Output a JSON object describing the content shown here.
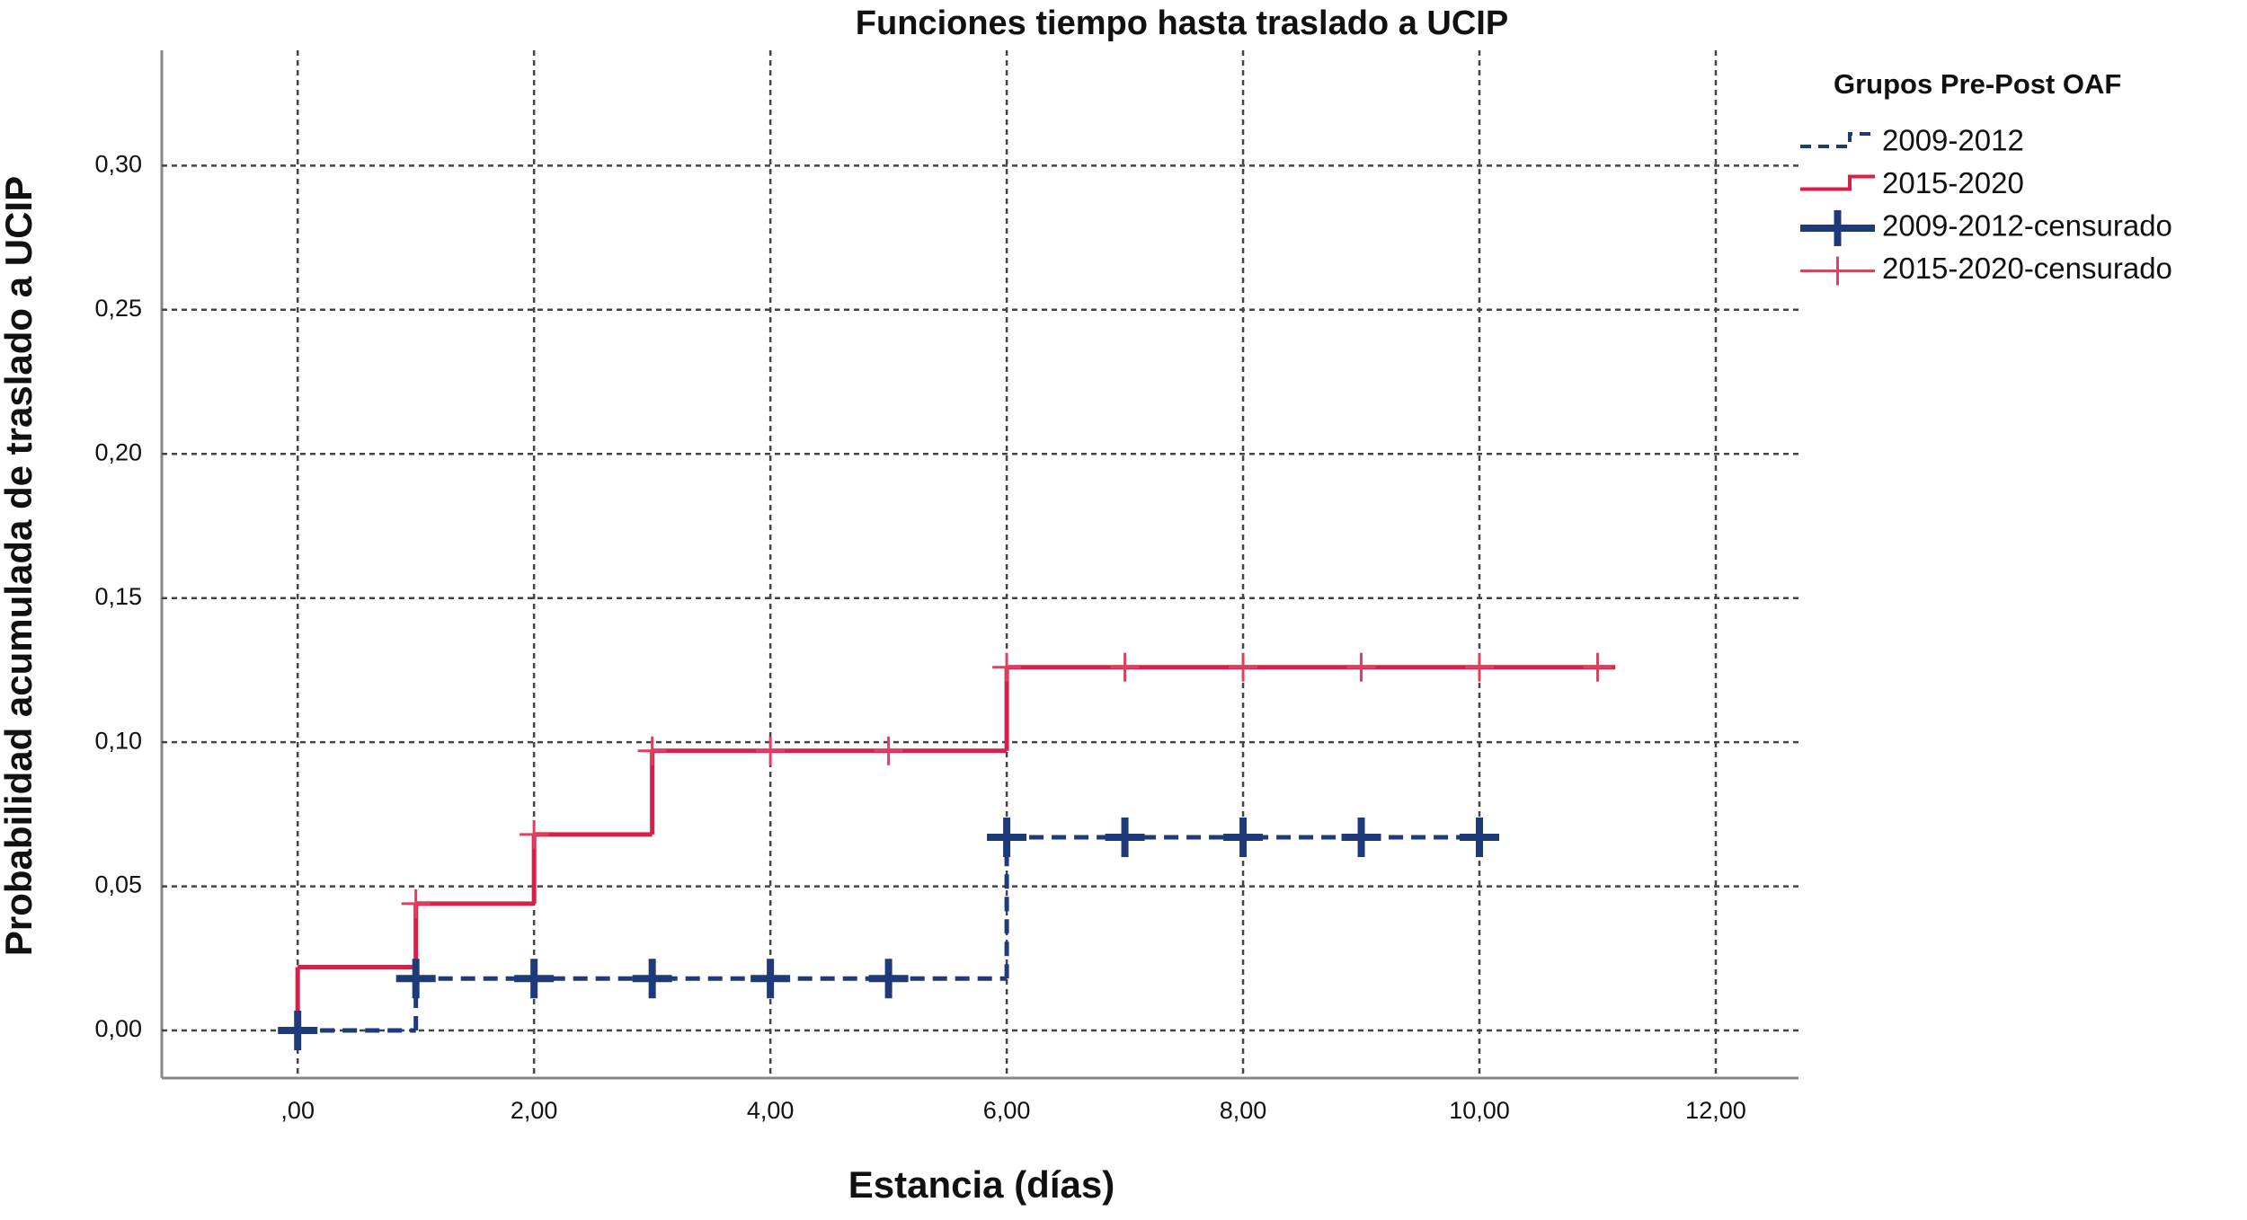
{
  "chart_data": {
    "type": "step",
    "title": "Funciones tiempo hasta traslado a UCIP",
    "x_label": "Estancia (días)",
    "y_label": "Probabilidad acumulada de traslado a UCIP",
    "legend_title": "Grupos Pre-Post OAF",
    "legend_position": "right",
    "grid": true,
    "xlim": [
      -1.15,
      12.7
    ],
    "ylim": [
      -0.0165,
      0.34
    ],
    "xticks": [
      {
        "value": 0,
        "label": ",00"
      },
      {
        "value": 2,
        "label": "2,00"
      },
      {
        "value": 4,
        "label": "4,00"
      },
      {
        "value": 6,
        "label": "6,00"
      },
      {
        "value": 8,
        "label": "8,00"
      },
      {
        "value": 10,
        "label": "10,00"
      },
      {
        "value": 12,
        "label": "12,00"
      }
    ],
    "yticks": [
      {
        "value": 0,
        "label": "0,00"
      },
      {
        "value": 0.05,
        "label": "0,05"
      },
      {
        "value": 0.1,
        "label": "0,10"
      },
      {
        "value": 0.15,
        "label": "0,15"
      },
      {
        "value": 0.2,
        "label": "0,20"
      },
      {
        "value": 0.25,
        "label": "0,25"
      },
      {
        "value": 0.3,
        "label": "0,30"
      }
    ],
    "series": [
      {
        "name": "2009-2012",
        "color": "#1f3a7a",
        "step": true,
        "dashed": true,
        "x": [
          0,
          1,
          6,
          10.15
        ],
        "values": [
          0,
          0.018,
          0.067,
          0.067
        ]
      },
      {
        "name": "2015-2020",
        "color": "#d6204a",
        "step": true,
        "dashed": false,
        "x": [
          0,
          1,
          2,
          3,
          6,
          11.15
        ],
        "values": [
          0.022,
          0.044,
          0.068,
          0.097,
          0.126,
          0.126
        ]
      },
      {
        "name": "2009-2012-censurado",
        "color": "#1f3a7a",
        "marker": "+",
        "bold": true,
        "x": [
          0,
          1,
          2,
          3,
          4,
          5,
          6,
          7,
          8,
          9,
          10
        ],
        "values": [
          0,
          0.018,
          0.018,
          0.018,
          0.018,
          0.018,
          0.067,
          0.067,
          0.067,
          0.067,
          0.067
        ]
      },
      {
        "name": "2015-2020-censurado",
        "color": "#e0405f",
        "marker": "+",
        "bold": false,
        "x": [
          1,
          2,
          3,
          4,
          5,
          6,
          7,
          8,
          9,
          10,
          11
        ],
        "values": [
          0.044,
          0.068,
          0.097,
          0.097,
          0.097,
          0.126,
          0.126,
          0.126,
          0.126,
          0.126,
          0.126
        ]
      }
    ]
  }
}
